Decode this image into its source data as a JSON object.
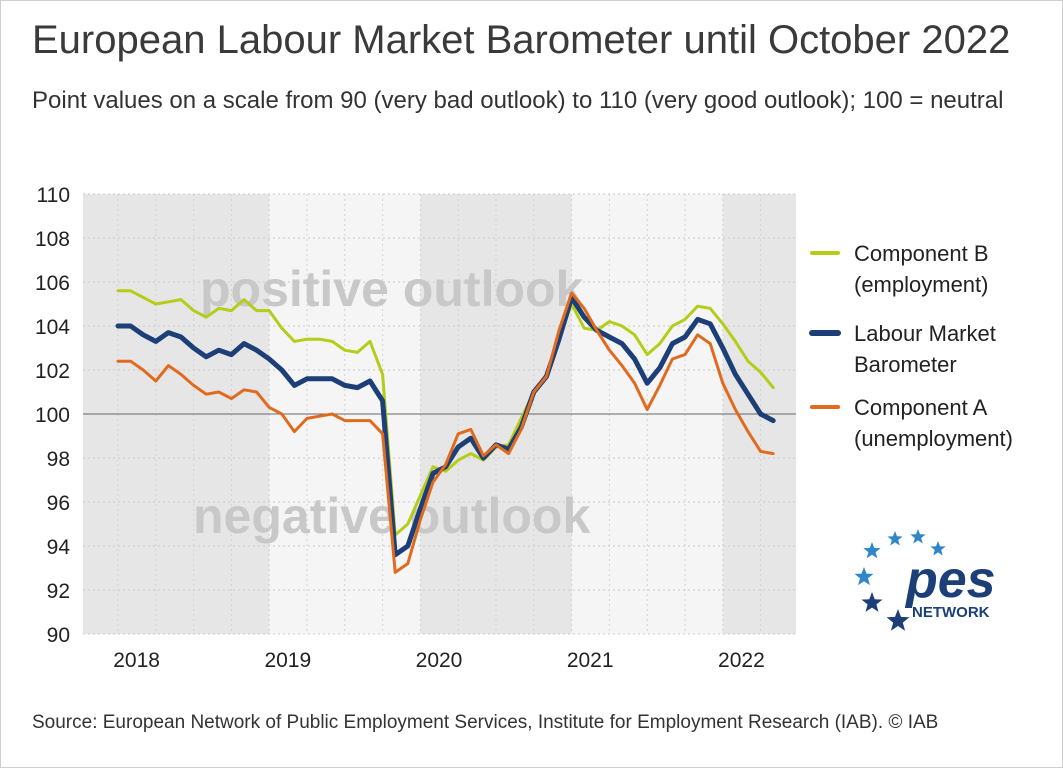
{
  "title": "European Labour Market Barometer until October 2022",
  "subtitle": "Point values on a scale from 90 (very bad outlook) to 110 (very good outlook); 100 = neutral",
  "source": "Source: European Network of Public Employment Services, Institute for Employment Research (IAB).  © IAB",
  "logo": {
    "text": "pes",
    "subtext": "NETWORK",
    "primary_color": "#1c3f77",
    "star_color": "#2f86c8"
  },
  "chart_data": {
    "type": "line",
    "ylim": [
      90,
      110
    ],
    "yticks": [
      90,
      92,
      94,
      96,
      98,
      100,
      102,
      104,
      106,
      108,
      110
    ],
    "x_start": "2017-12",
    "year_labels": [
      "2018",
      "2019",
      "2020",
      "2021",
      "2022"
    ],
    "reference_line": 100,
    "band_labels": {
      "upper": "positive outlook",
      "lower": "negative outlook"
    },
    "grid": true,
    "legend_position": "right",
    "series": [
      {
        "key": "B",
        "name": "Component B (employment)",
        "legend_lines": [
          "Component B",
          "(employment)"
        ],
        "color": "#b5cc18",
        "width": 3,
        "values": [
          105.6,
          105.6,
          105.3,
          105.0,
          105.1,
          105.2,
          104.7,
          104.4,
          104.8,
          104.7,
          105.2,
          104.7,
          104.7,
          103.9,
          103.3,
          103.4,
          103.4,
          103.3,
          102.9,
          102.8,
          103.3,
          101.8,
          94.5,
          95.0,
          96.3,
          97.6,
          97.4,
          97.9,
          98.2,
          97.9,
          98.5,
          98.6,
          99.8,
          101.0,
          101.8,
          103.4,
          105.0,
          103.9,
          103.8,
          104.2,
          104.0,
          103.6,
          102.7,
          103.2,
          104.0,
          104.3,
          104.9,
          104.8,
          104.1,
          103.3,
          102.4,
          101.9,
          101.2
        ]
      },
      {
        "key": "LMB",
        "name": "Labour Market Barometer",
        "legend_lines": [
          "Labour Market",
          "Barometer"
        ],
        "color": "#1c3f77",
        "width": 5,
        "values": [
          104.0,
          104.0,
          103.6,
          103.3,
          103.7,
          103.5,
          103.0,
          102.6,
          102.9,
          102.7,
          103.2,
          102.9,
          102.5,
          102.0,
          101.3,
          101.6,
          101.6,
          101.6,
          101.3,
          101.2,
          101.5,
          100.6,
          93.6,
          94.0,
          95.7,
          97.3,
          97.6,
          98.5,
          98.9,
          98.0,
          98.6,
          98.4,
          99.4,
          101.0,
          101.7,
          103.4,
          105.3,
          104.4,
          103.8,
          103.5,
          103.2,
          102.5,
          101.4,
          102.1,
          103.2,
          103.5,
          104.3,
          104.1,
          103.0,
          101.8,
          100.9,
          100.0,
          99.7
        ]
      },
      {
        "key": "A",
        "name": "Component A (unemployment)",
        "legend_lines": [
          "Component A",
          "(unemployment)"
        ],
        "color": "#e06b1f",
        "width": 3,
        "values": [
          102.4,
          102.4,
          102.0,
          101.5,
          102.2,
          101.8,
          101.3,
          100.9,
          101.0,
          100.7,
          101.1,
          101.0,
          100.3,
          100.0,
          99.2,
          99.8,
          99.9,
          100.0,
          99.7,
          99.7,
          99.7,
          99.1,
          92.8,
          93.2,
          95.2,
          96.9,
          97.7,
          99.1,
          99.3,
          98.1,
          98.6,
          98.2,
          99.3,
          101.0,
          101.7,
          103.8,
          105.5,
          104.8,
          103.8,
          102.9,
          102.2,
          101.4,
          100.2,
          101.3,
          102.5,
          102.7,
          103.6,
          103.2,
          101.4,
          100.2,
          99.2,
          98.3,
          98.2
        ]
      }
    ]
  }
}
